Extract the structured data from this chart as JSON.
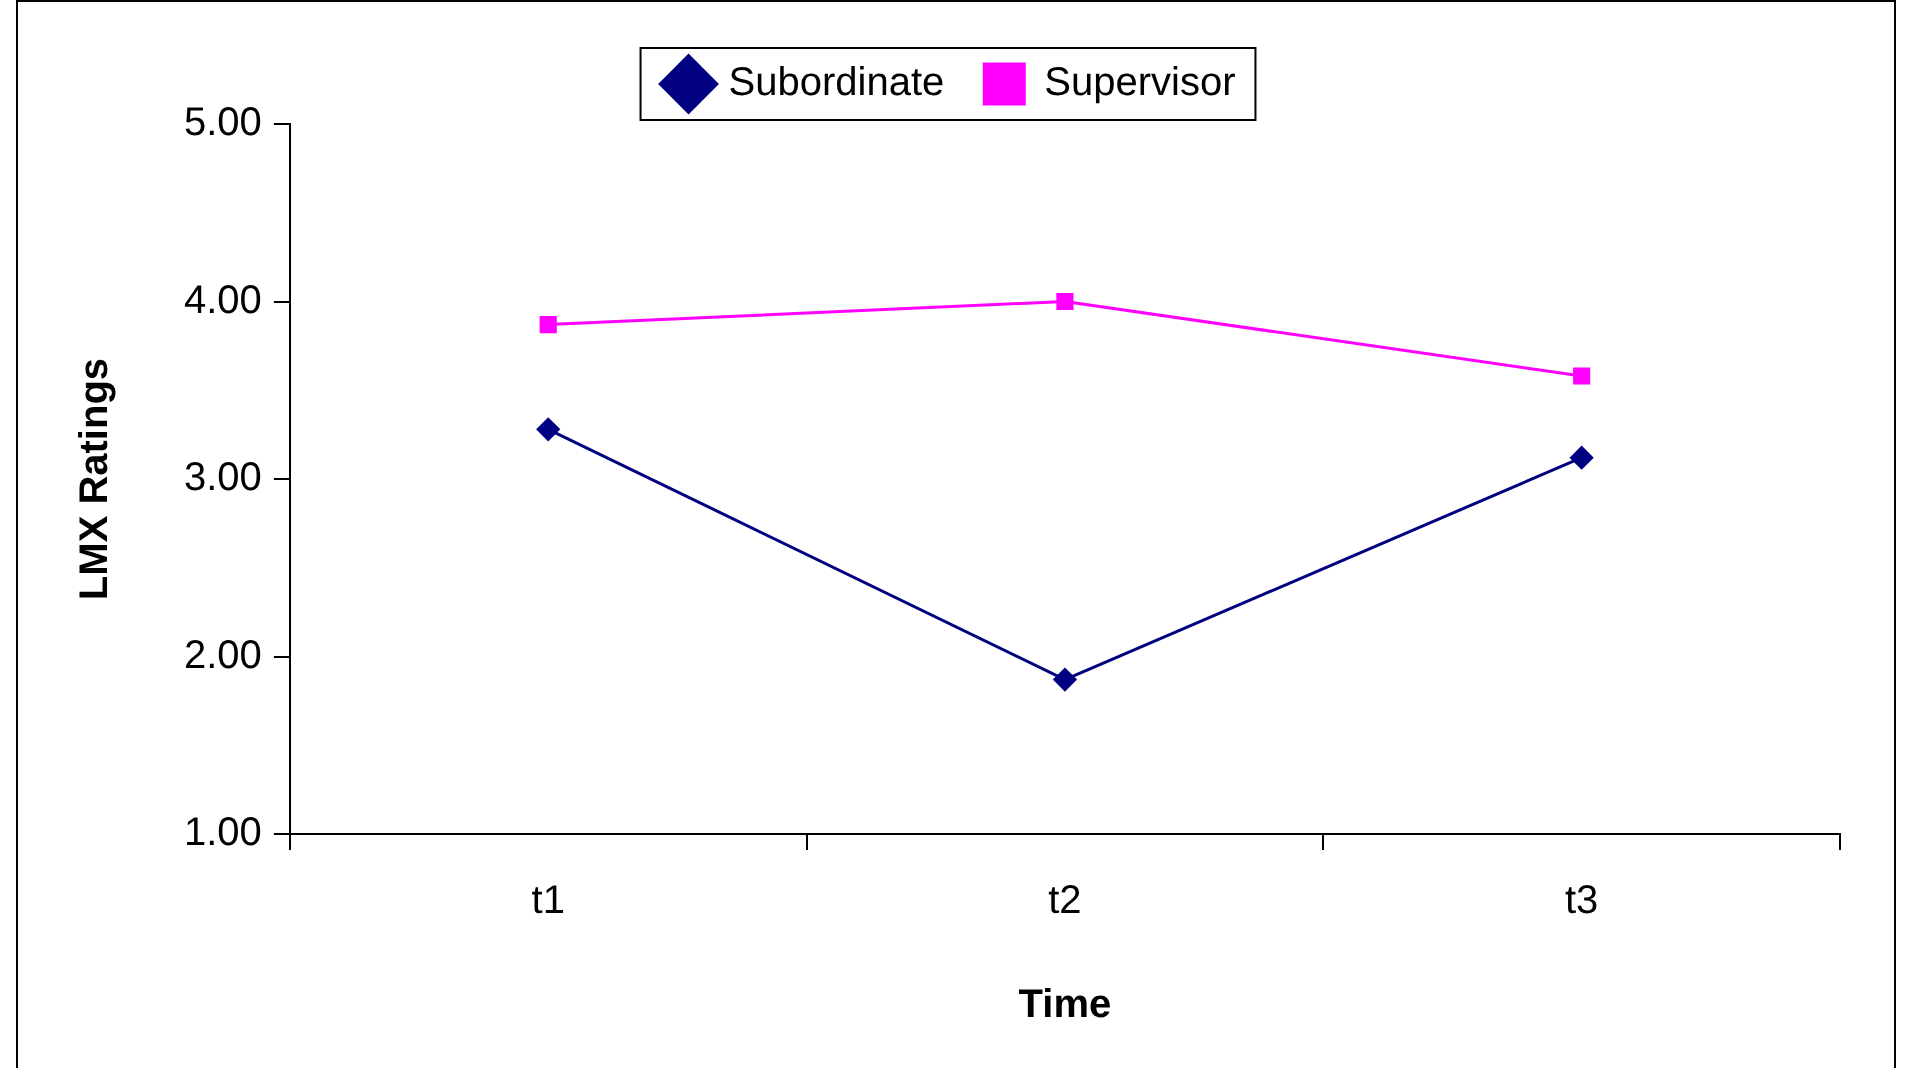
{
  "chart_data": {
    "type": "line",
    "xlabel": "Time",
    "ylabel": "LMX Ratings",
    "categories": [
      "t1",
      "t2",
      "t3"
    ],
    "series": [
      {
        "name": "Subordinate",
        "color": "#000080",
        "marker": "diamond",
        "values": [
          3.28,
          1.87,
          3.12
        ]
      },
      {
        "name": "Supervisor",
        "color": "#ff00ff",
        "marker": "square",
        "values": [
          3.87,
          4.0,
          3.58
        ]
      }
    ],
    "ylim": [
      1,
      5
    ],
    "yticks": [
      {
        "value": 1,
        "label": "1.00"
      },
      {
        "value": 2,
        "label": "2.00"
      },
      {
        "value": 3,
        "label": "3.00"
      },
      {
        "value": 4,
        "label": "4.00"
      },
      {
        "value": 5,
        "label": "5.00"
      }
    ],
    "grid": false,
    "legend": "top",
    "line_style": "solid"
  }
}
